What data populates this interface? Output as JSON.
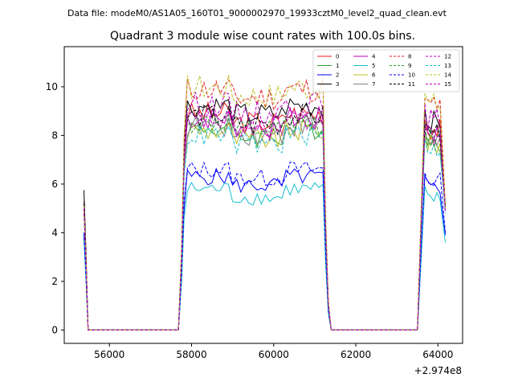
{
  "chart_data": {
    "type": "line",
    "suptitle": "Data file: modeM0/AS1A05_160T01_9000002970_19933cztM0_level2_quad_clean.evt",
    "title": "Quadrant 3 module wise count rates with 100.0s bins.",
    "x_offset_label": "+2.974e8",
    "xlim": [
      54900,
      64600
    ],
    "ylim": [
      -0.55,
      11.65
    ],
    "x_ticks": [
      56000,
      58000,
      60000,
      62000,
      64000
    ],
    "x_tick_labels": [
      "56000",
      "58000",
      "60000",
      "62000",
      "64000"
    ],
    "y_ticks": [
      0,
      2,
      4,
      6,
      8,
      10
    ],
    "y_tick_labels": [
      "0",
      "2",
      "4",
      "6",
      "8",
      "10"
    ],
    "legend_position": "top-right",
    "grid": false,
    "series": [
      {
        "name": "0",
        "color": "#e41a1c",
        "dash": "solid",
        "level": 8.9,
        "edge": 5.3,
        "end": 5.1
      },
      {
        "name": "1",
        "color": "#2ca02c",
        "dash": "solid",
        "level": 8.3,
        "edge": 5.0,
        "end": 5.2
      },
      {
        "name": "2",
        "color": "#0000ff",
        "dash": "solid",
        "level": 6.3,
        "edge": 3.9,
        "end": 3.9
      },
      {
        "name": "3",
        "color": "#000000",
        "dash": "solid",
        "level": 9.2,
        "edge": 5.75,
        "end": 5.0
      },
      {
        "name": "4",
        "color": "#bf00bf",
        "dash": "solid",
        "level": 8.7,
        "edge": 5.0,
        "end": 4.9
      },
      {
        "name": "5",
        "color": "#17becf",
        "dash": "solid",
        "level": 5.8,
        "edge": 3.7,
        "end": 3.6
      },
      {
        "name": "6",
        "color": "#bcbd22",
        "dash": "solid",
        "level": 8.2,
        "edge": 5.0,
        "end": 5.1
      },
      {
        "name": "7",
        "color": "#7f7f7f",
        "dash": "solid",
        "level": 8.4,
        "edge": 5.0,
        "end": 5.0
      },
      {
        "name": "8",
        "color": "#e41a1c",
        "dash": "dashed",
        "level": 9.9,
        "edge": 5.2,
        "end": 5.1
      },
      {
        "name": "9",
        "color": "#2ca02c",
        "dash": "dashed",
        "level": 8.5,
        "edge": 5.0,
        "end": 5.0
      },
      {
        "name": "10",
        "color": "#0000ff",
        "dash": "dashed",
        "level": 6.6,
        "edge": 4.0,
        "end": 4.0
      },
      {
        "name": "11",
        "color": "#000000",
        "dash": "dashed",
        "level": 8.8,
        "edge": 5.2,
        "end": 5.0
      },
      {
        "name": "12",
        "color": "#bf00bf",
        "dash": "dashed",
        "level": 9.3,
        "edge": 5.1,
        "end": 5.0
      },
      {
        "name": "13",
        "color": "#17becf",
        "dash": "dashed",
        "level": 8.0,
        "edge": 4.9,
        "end": 4.8
      },
      {
        "name": "14",
        "color": "#bcbd22",
        "dash": "dashed",
        "level": 10.0,
        "edge": 5.1,
        "end": 5.0
      },
      {
        "name": "15",
        "color": "#bf00bf",
        "dash": "dashed",
        "level": 8.6,
        "edge": 5.0,
        "end": 4.9
      }
    ],
    "segments": {
      "seg1_x": [
        55380,
        55480
      ],
      "gap1_x": [
        55480,
        57700
      ],
      "seg2_x": [
        57700,
        61330
      ],
      "gap2_x": [
        61330,
        63550
      ],
      "seg3_x": [
        63550,
        64180
      ],
      "bin": 100
    }
  }
}
